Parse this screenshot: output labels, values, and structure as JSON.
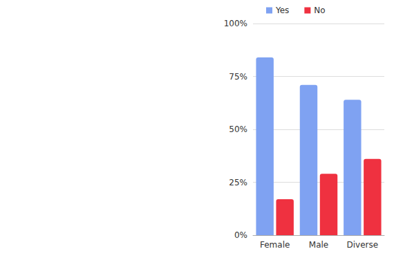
{
  "chart_data": {
    "type": "bar",
    "categories": [
      "Female",
      "Male",
      "Diverse"
    ],
    "series": [
      {
        "name": "Yes",
        "color": "#7fa2f2",
        "values": [
          84,
          71,
          64
        ]
      },
      {
        "name": "No",
        "color": "#ef3140",
        "values": [
          17,
          29,
          36
        ]
      }
    ],
    "ylim": [
      0,
      100
    ],
    "yticks": [
      {
        "value": 0,
        "label": "0%"
      },
      {
        "value": 25,
        "label": "25%"
      },
      {
        "value": 50,
        "label": "50%"
      },
      {
        "value": 75,
        "label": "75%"
      },
      {
        "value": 100,
        "label": "100%"
      }
    ],
    "grid": true,
    "legend": "top"
  }
}
